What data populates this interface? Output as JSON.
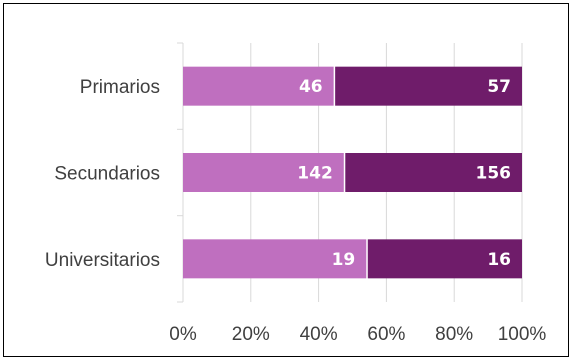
{
  "chart_data": {
    "type": "bar",
    "orientation": "horizontal",
    "stacked": "percent",
    "categories": [
      "Primarios",
      "Secundarios",
      "Universitarios"
    ],
    "series": [
      {
        "values": [
          46,
          142,
          19
        ],
        "color": "#bf6fbf"
      },
      {
        "values": [
          57,
          156,
          16
        ],
        "color": "#6f1c6a"
      }
    ],
    "x_ticks": [
      "0%",
      "20%",
      "40%",
      "60%",
      "80%",
      "100%"
    ],
    "xlim": [
      0,
      100
    ],
    "grid": true,
    "legend": "none"
  }
}
